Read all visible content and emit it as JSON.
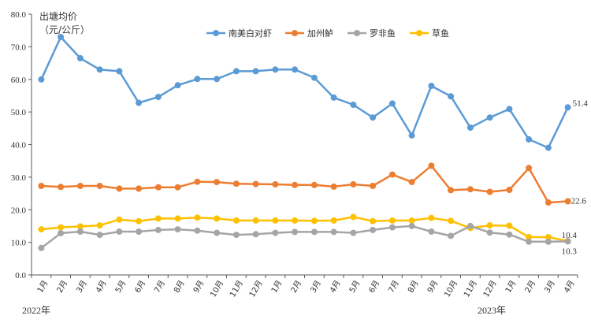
{
  "chart_data": {
    "type": "line",
    "ylabel": [
      "出塘均价",
      "（元/公斤）"
    ],
    "ylim": [
      0,
      80
    ],
    "y_ticks": [
      "0.0",
      "10.0",
      "20.0",
      "30.0",
      "40.0",
      "50.0",
      "60.0",
      "70.0",
      "80.0"
    ],
    "grid": false,
    "legend_position": "top-center",
    "categories": [
      "1月",
      "2月",
      "3月",
      "4月",
      "5月",
      "6月",
      "7月",
      "8月",
      "9月",
      "10月",
      "11月",
      "12月",
      "1月",
      "2月",
      "3月",
      "4月",
      "5月",
      "6月",
      "7月",
      "8月",
      "9月",
      "10月",
      "11月",
      "12月",
      "1月",
      "2月",
      "3月",
      "4月"
    ],
    "year_labels": [
      {
        "text": "2022年",
        "category_index": 0
      },
      {
        "text": "2023年",
        "category_index": 24
      }
    ],
    "series": [
      {
        "name": "南美白对虾",
        "color": "#5b9bd5",
        "end_label": "51.4",
        "values": [
          60.0,
          73.0,
          66.5,
          63.0,
          62.5,
          52.8,
          54.6,
          58.2,
          60.1,
          60.1,
          62.5,
          62.5,
          63.0,
          63.0,
          60.5,
          54.4,
          52.2,
          48.3,
          52.6,
          42.8,
          58.0,
          54.8,
          45.2,
          48.3,
          50.9,
          41.6,
          39.0,
          51.4
        ]
      },
      {
        "name": "加州鲈",
        "color": "#ed7d31",
        "end_label": "22.6",
        "values": [
          27.3,
          27.0,
          27.3,
          27.3,
          26.5,
          26.5,
          26.9,
          26.9,
          28.6,
          28.5,
          28.0,
          27.9,
          27.8,
          27.6,
          27.6,
          27.1,
          27.8,
          27.3,
          30.8,
          28.5,
          33.5,
          26.0,
          26.3,
          25.5,
          26.1,
          32.8,
          22.2,
          22.6
        ]
      },
      {
        "name": "罗非鱼",
        "color": "#a5a5a5",
        "end_label": "10.3",
        "values": [
          8.3,
          12.8,
          13.3,
          12.3,
          13.3,
          13.3,
          13.8,
          14.0,
          13.6,
          12.9,
          12.3,
          12.5,
          12.9,
          13.2,
          13.2,
          13.2,
          12.9,
          13.8,
          14.6,
          15.0,
          13.3,
          12.0,
          15.0,
          13.0,
          12.4,
          10.2,
          10.2,
          10.3
        ]
      },
      {
        "name": "草鱼",
        "color": "#ffc000",
        "end_label": "10.4",
        "values": [
          14.0,
          14.6,
          14.9,
          15.2,
          17.0,
          16.5,
          17.3,
          17.3,
          17.6,
          17.3,
          16.7,
          16.7,
          16.7,
          16.7,
          16.6,
          16.7,
          17.8,
          16.5,
          16.7,
          16.7,
          17.5,
          16.6,
          14.4,
          15.2,
          15.1,
          11.6,
          11.6,
          10.4
        ]
      }
    ]
  }
}
